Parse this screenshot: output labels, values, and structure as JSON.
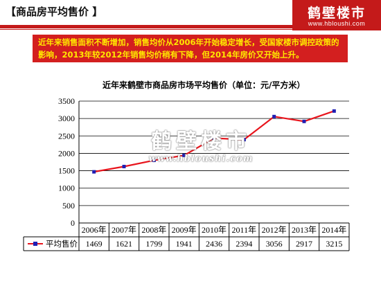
{
  "header": {
    "title": "【商品房平均售价 】"
  },
  "logo": {
    "name": "鹤壁楼市",
    "url": "www.hbloushi.com"
  },
  "callout": {
    "text": "近年来销售面积不断增加，销售均价从2006年开始稳定增长，受国家楼市调控政策的影响，2013年较2012年销售均价稍有下降，但2014年房价又开始上升。"
  },
  "watermark": {
    "main": "鹤壁楼市",
    "url": "www.hbloushi.com"
  },
  "colors": {
    "accent": "#c41a1a",
    "callout_bg": "#d31f1f",
    "callout_text": "#ffe800",
    "line": "#e8141c",
    "marker": "#1f1fb4"
  },
  "chart_data": {
    "type": "line",
    "title": "近年来鹤壁市商品房市场平均售价（单位：元/平方米）",
    "categories": [
      "2006年",
      "2007年",
      "2008年",
      "2009年",
      "2010年",
      "2011年",
      "2012年",
      "2013年",
      "2014年"
    ],
    "series": [
      {
        "name": "平均售价",
        "values": [
          1469,
          1621,
          1799,
          1941,
          2436,
          2394,
          3056,
          2917,
          3215
        ]
      }
    ],
    "y_ticks": [
      "0",
      "500",
      "1000",
      "1500",
      "2000",
      "2500",
      "3000",
      "3500"
    ],
    "ylim": [
      0,
      3500
    ],
    "grid": true,
    "legend": "data-table"
  }
}
